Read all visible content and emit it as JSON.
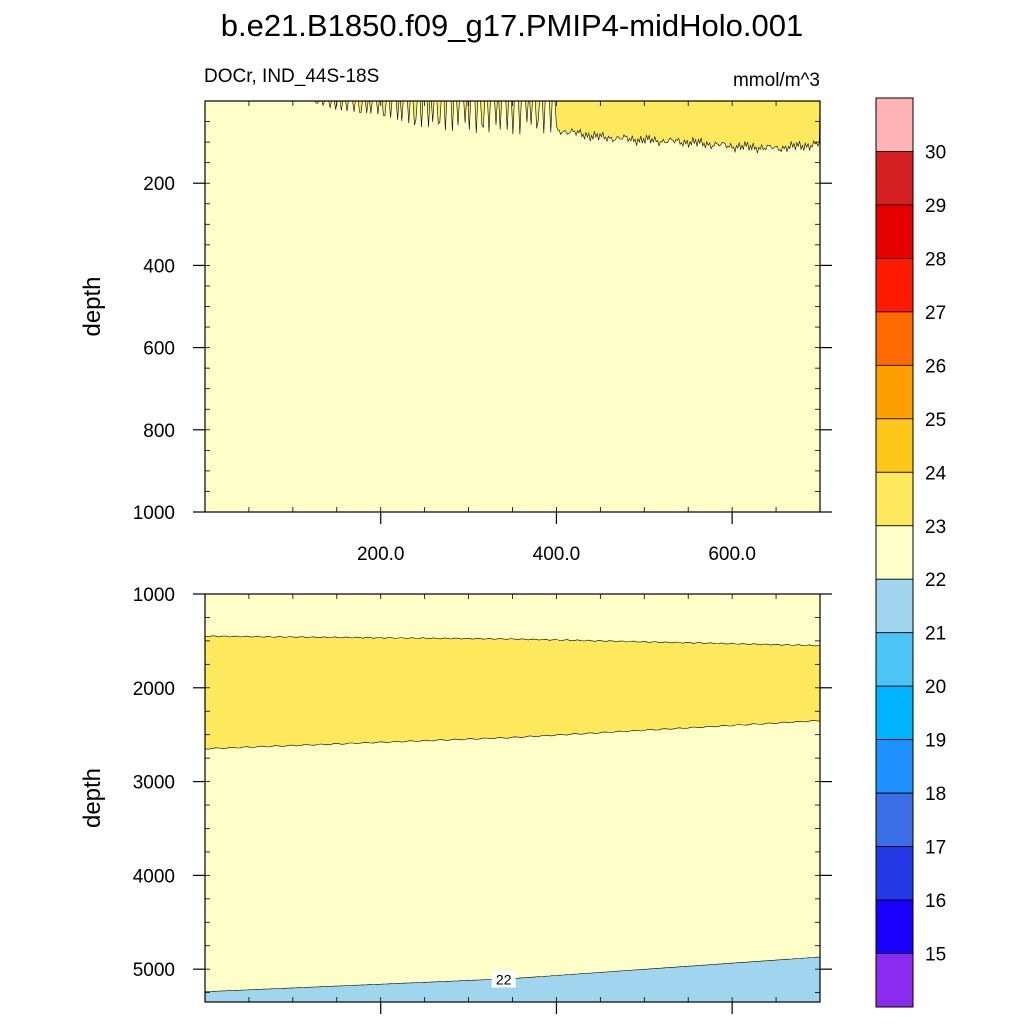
{
  "title": "b.e21.B1850.f09_g17.PMIP4-midHolo.001",
  "variable_label": "DOCr, IND_44S-18S",
  "units": "mmol/m^3",
  "chart_data": [
    {
      "type": "contour",
      "panel": "upper",
      "ylabel": "depth",
      "xlim": [
        0,
        700
      ],
      "ylim": [
        1000,
        0
      ],
      "y_inverted": true,
      "xticks": [
        200,
        400,
        600
      ],
      "xtick_labels": [
        "200.0",
        "400.0",
        "600.0"
      ],
      "yticks": [
        200,
        400,
        600,
        800,
        1000
      ],
      "ytick_labels": [
        "200",
        "400",
        "600",
        "800",
        "1000"
      ],
      "background_band": "22-23",
      "bands": [
        {
          "range": "23-24",
          "color": "#fee95c",
          "note": "patchy at surface from x~120, continuous layer from x~400",
          "bottom_depth": {
            "x": [
              120,
              150,
              200,
              250,
              300,
              350,
              400,
              450,
              500,
              550,
              600,
              650,
              700
            ],
            "depth": [
              0,
              20,
              30,
              60,
              70,
              75,
              70,
              88,
              95,
              100,
              110,
              115,
              105
            ]
          }
        }
      ]
    },
    {
      "type": "contour",
      "panel": "lower",
      "ylabel": "depth",
      "xlim": [
        0,
        700
      ],
      "ylim": [
        5350,
        1000
      ],
      "y_inverted": true,
      "yticks": [
        1000,
        2000,
        3000,
        4000,
        5000
      ],
      "ytick_labels": [
        "1000",
        "2000",
        "3000",
        "4000",
        "5000"
      ],
      "background_band": "22-23",
      "bands": [
        {
          "range": "23-24",
          "color": "#fee95c",
          "top_depth": {
            "x": [
              0,
              350,
              700
            ],
            "depth": [
              1450,
              1480,
              1550
            ]
          },
          "bottom_depth": {
            "x": [
              0,
              350,
              700
            ],
            "depth": [
              2650,
              2530,
              2350
            ]
          }
        },
        {
          "range": "21-22",
          "color": "#a0d5f0",
          "top_depth": {
            "x": [
              0,
              350,
              700
            ],
            "depth": [
              5240,
              5100,
              4870
            ]
          }
        }
      ],
      "contour_labels": [
        {
          "text": "22",
          "x": 340,
          "depth": 5110
        }
      ]
    }
  ],
  "colorbar": {
    "levels": [
      "15",
      "16",
      "17",
      "18",
      "19",
      "20",
      "21",
      "22",
      "23",
      "24",
      "25",
      "26",
      "27",
      "28",
      "29",
      "30"
    ],
    "colors": [
      "#8b2bf0",
      "#1a00ff",
      "#2539e6",
      "#3b6ee6",
      "#1e90ff",
      "#00b4ff",
      "#4cc4f5",
      "#a0d5f0",
      "#fefec8",
      "#fee95c",
      "#fec51a",
      "#fe9e00",
      "#fe6a00",
      "#fe1a00",
      "#e60000",
      "#d42020",
      "#feb4b4"
    ]
  },
  "colors": {
    "band_22_23": "#fefec8",
    "band_23_24": "#fee95c",
    "band_21_22": "#a0d5f0"
  }
}
